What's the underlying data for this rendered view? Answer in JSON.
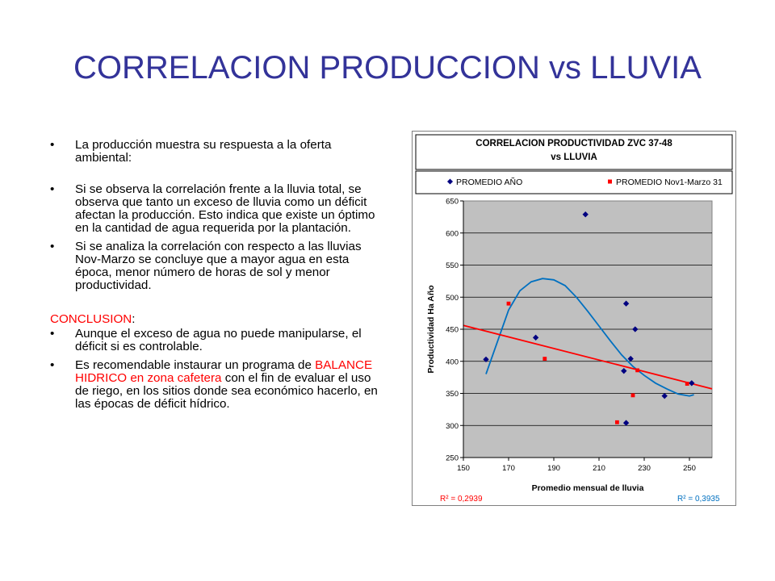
{
  "slide": {
    "title": "CORRELACION PRODUCCION vs LLUVIA",
    "bullets": [
      "La producción muestra su respuesta a la oferta ambiental:",
      "Si se observa la correlación frente a la lluvia total, se observa que tanto un exceso de lluvia como un déficit afectan la producción. Esto indica que existe un óptimo en la cantidad de agua requerida por la plantación.",
      "Si se analiza la correlación con respecto a las lluvias Nov-Marzo se concluye que a mayor agua en esta época, menor número de horas de sol y menor productividad."
    ],
    "bullet_glyph": "•",
    "conclusion_label": "CONCLUSION",
    "conclusion_colon": ":",
    "conclusion_bullet_1": "Aunque el exceso de agua no puede manipularse, el déficit si es controlable.",
    "conclusion_bullet_2_pre": "Es recomendable instaurar un programa de ",
    "conclusion_bullet_2_red": "BALANCE HIDRICO en zona cafetera",
    "conclusion_bullet_2_post": " con el fin de evaluar el uso de riego, en los sitios donde sea económico hacerlo, en las épocas de déficit hídrico."
  },
  "chart_data": {
    "type": "scatter",
    "title": "CORRELACION PRODUCTIVIDAD ZVC 37-48",
    "subtitle": "vs LLUVIA",
    "xlabel": "Promedio mensual de lluvia",
    "ylabel": "Productividad Ha Año",
    "xlim": [
      150,
      260
    ],
    "ylim": [
      250,
      650
    ],
    "xticks": [
      150,
      170,
      190,
      210,
      230,
      250
    ],
    "yticks": [
      250,
      300,
      350,
      400,
      450,
      500,
      550,
      600,
      650
    ],
    "grid": true,
    "legend": "top",
    "series": [
      {
        "name": "PROMEDIO AÑO",
        "marker": "diamond",
        "color": "#000080",
        "points": [
          [
            160,
            403
          ],
          [
            182,
            437
          ],
          [
            204,
            629
          ],
          [
            222,
            490
          ],
          [
            221,
            385
          ],
          [
            224,
            404
          ],
          [
            226,
            450
          ],
          [
            222,
            304
          ],
          [
            239,
            346
          ],
          [
            251,
            366
          ]
        ]
      },
      {
        "name": "PROMEDIO Nov1-Marzo 31",
        "marker": "square",
        "color": "#ff0000",
        "points": [
          [
            170,
            490
          ],
          [
            186,
            404
          ],
          [
            218,
            305
          ],
          [
            225,
            347
          ],
          [
            227,
            386
          ],
          [
            249,
            365
          ]
        ]
      }
    ],
    "trendlines": [
      {
        "type": "polynomial",
        "color": "#0070c0",
        "r2_label": "R² = 0,3935",
        "points": [
          [
            160,
            380
          ],
          [
            165,
            430
          ],
          [
            170,
            480
          ],
          [
            175,
            510
          ],
          [
            180,
            524
          ],
          [
            185,
            529
          ],
          [
            190,
            527
          ],
          [
            195,
            518
          ],
          [
            200,
            500
          ],
          [
            205,
            478
          ],
          [
            210,
            455
          ],
          [
            215,
            432
          ],
          [
            220,
            410
          ],
          [
            225,
            392
          ],
          [
            230,
            378
          ],
          [
            235,
            366
          ],
          [
            240,
            357
          ],
          [
            245,
            349
          ],
          [
            250,
            346
          ],
          [
            252,
            348
          ]
        ]
      },
      {
        "type": "linear",
        "color": "#ff0000",
        "r2_label": "R² = 0,2939",
        "points": [
          [
            150,
            456
          ],
          [
            260,
            357
          ]
        ]
      }
    ]
  },
  "colors": {
    "title": "#333399",
    "plot_bg": "#c0c0c0",
    "conclusion_red": "#ff0000"
  }
}
